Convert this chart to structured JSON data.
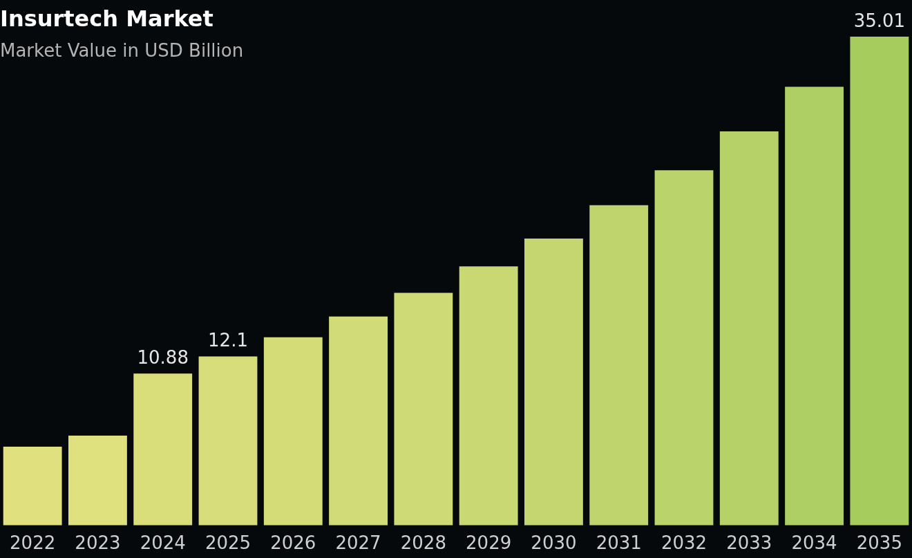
{
  "chart_data": {
    "type": "bar",
    "title": "Insurtech Market",
    "subtitle": "Market Value in USD Billion",
    "categories": [
      "2022",
      "2023",
      "2024",
      "2025",
      "2026",
      "2027",
      "2028",
      "2029",
      "2030",
      "2031",
      "2032",
      "2033",
      "2034",
      "2035"
    ],
    "values": [
      5.64,
      6.43,
      10.88,
      12.1,
      13.47,
      14.96,
      16.66,
      18.55,
      20.55,
      22.94,
      25.44,
      28.23,
      31.42,
      35.01
    ],
    "value_labels": [
      null,
      null,
      "10.88",
      "12.1",
      null,
      null,
      null,
      null,
      null,
      null,
      null,
      null,
      null,
      "35.01"
    ],
    "colors": [
      "#e0e07f",
      "#dfe07e",
      "#d9de7b",
      "#d7dd7a",
      "#d4dc78",
      "#d1db77",
      "#cdda75",
      "#c9d873",
      "#c5d671",
      "#c0d46e",
      "#bbd36b",
      "#b5d168",
      "#aecf63",
      "#a7cc5e"
    ],
    "legend": false
  }
}
